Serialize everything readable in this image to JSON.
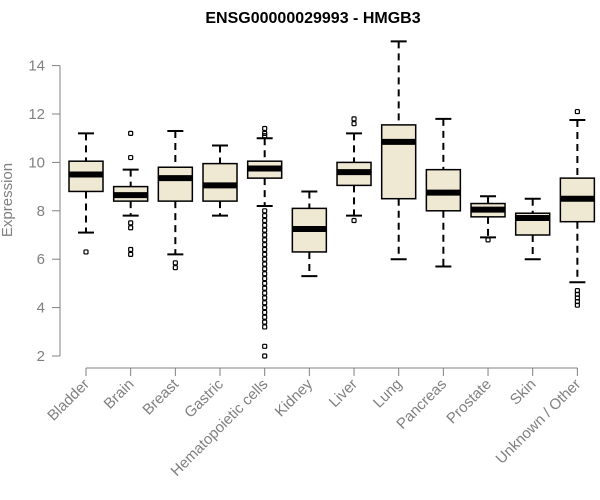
{
  "chart_data": {
    "type": "boxplot",
    "title": "ENSG00000029993 - HMGB3",
    "xlabel": "",
    "ylabel": "Expression",
    "ylim": [
      2,
      15
    ],
    "yticks": [
      2,
      4,
      6,
      8,
      10,
      12,
      14
    ],
    "categories": [
      "Bladder",
      "Brain",
      "Breast",
      "Gastric",
      "Hematopoietic cells",
      "Kidney",
      "Liver",
      "Lung",
      "Pancreas",
      "Prostate",
      "Skin",
      "Unknown / Other"
    ],
    "box_color": "#efe8d2",
    "boxes": [
      {
        "label": "Bladder",
        "whisker_low": 7.1,
        "q1": 8.8,
        "median": 9.5,
        "q3": 10.05,
        "whisker_high": 11.2,
        "outliers": [
          6.3
        ]
      },
      {
        "label": "Brain",
        "whisker_low": 7.8,
        "q1": 8.4,
        "median": 8.65,
        "q3": 9.0,
        "whisker_high": 9.7,
        "outliers": [
          11.2,
          10.2,
          7.5,
          7.3,
          6.4,
          6.2
        ]
      },
      {
        "label": "Breast",
        "whisker_low": 6.2,
        "q1": 8.4,
        "median": 9.35,
        "q3": 9.8,
        "whisker_high": 11.3,
        "outliers": [
          5.85,
          5.65
        ]
      },
      {
        "label": "Gastric",
        "whisker_low": 7.8,
        "q1": 8.4,
        "median": 9.05,
        "q3": 9.95,
        "whisker_high": 10.7,
        "outliers": []
      },
      {
        "label": "Hematopoietic cells",
        "whisker_low": 8.2,
        "q1": 9.35,
        "median": 9.75,
        "q3": 10.05,
        "whisker_high": 11.0,
        "outliers": [
          11.4,
          11.2,
          11.1,
          8.0,
          7.8,
          7.6,
          7.4,
          7.2,
          7.0,
          6.8,
          6.6,
          6.4,
          6.2,
          6.0,
          5.8,
          5.6,
          5.4,
          5.2,
          5.0,
          4.8,
          4.6,
          4.4,
          4.2,
          4.0,
          3.8,
          3.6,
          3.4,
          3.2,
          2.4,
          2.0
        ]
      },
      {
        "label": "Kidney",
        "whisker_low": 5.3,
        "q1": 6.3,
        "median": 7.25,
        "q3": 8.1,
        "whisker_high": 8.8,
        "outliers": []
      },
      {
        "label": "Liver",
        "whisker_low": 7.8,
        "q1": 9.05,
        "median": 9.6,
        "q3": 10.0,
        "whisker_high": 11.2,
        "outliers": [
          11.8,
          11.6,
          7.6
        ]
      },
      {
        "label": "Lung",
        "whisker_low": 6.0,
        "q1": 8.5,
        "median": 10.85,
        "q3": 11.55,
        "whisker_high": 15.0,
        "outliers": []
      },
      {
        "label": "Pancreas",
        "whisker_low": 5.7,
        "q1": 8.0,
        "median": 8.75,
        "q3": 9.7,
        "whisker_high": 11.8,
        "outliers": []
      },
      {
        "label": "Prostate",
        "whisker_low": 6.9,
        "q1": 7.75,
        "median": 8.05,
        "q3": 8.3,
        "whisker_high": 8.6,
        "outliers": [
          6.8
        ]
      },
      {
        "label": "Skin",
        "whisker_low": 6.0,
        "q1": 7.0,
        "median": 7.7,
        "q3": 7.9,
        "whisker_high": 8.5,
        "outliers": []
      },
      {
        "label": "Unknown / Other",
        "whisker_low": 5.05,
        "q1": 7.55,
        "median": 8.5,
        "q3": 9.35,
        "whisker_high": 11.75,
        "outliers": [
          12.1,
          4.7,
          4.55,
          4.4,
          4.25,
          4.1
        ]
      }
    ]
  }
}
